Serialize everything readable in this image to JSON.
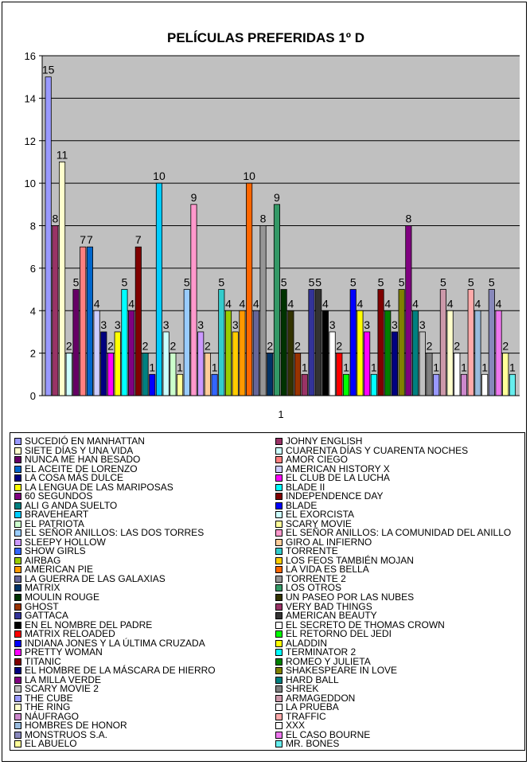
{
  "chart_data": {
    "type": "bar",
    "title": "PELÍCULAS PREFERIDAS 1º D",
    "categories": [
      "1"
    ],
    "ylim": [
      0,
      16
    ],
    "yticks": [
      0,
      2,
      4,
      6,
      8,
      10,
      12,
      14,
      16
    ],
    "grid": true,
    "legend_position": "bottom",
    "series": [
      {
        "name": "SUCEDIÓ EN MANHATTAN",
        "values": [
          15
        ],
        "color": "#9999ff"
      },
      {
        "name": "JOHNY ENGLISH",
        "values": [
          8
        ],
        "color": "#993366"
      },
      {
        "name": "SIETE DÍAS Y UNA VIDA",
        "values": [
          11
        ],
        "color": "#ffffcc"
      },
      {
        "name": "CUARENTA DÍAS Y CUARENTA NOCHES",
        "values": [
          2
        ],
        "color": "#ccffff"
      },
      {
        "name": "NUNCA ME HAN BESADO",
        "values": [
          5
        ],
        "color": "#660066"
      },
      {
        "name": "AMOR CIEGO",
        "values": [
          7
        ],
        "color": "#ff8080"
      },
      {
        "name": "EL ACEITE DE LORENZO",
        "values": [
          7
        ],
        "color": "#0066cc"
      },
      {
        "name": "AMERICAN HISTORY X",
        "values": [
          4
        ],
        "color": "#ccccff"
      },
      {
        "name": "LA COSA MÁS DULCE",
        "values": [
          3
        ],
        "color": "#000080"
      },
      {
        "name": "EL CLUB DE LA LUCHA",
        "values": [
          2
        ],
        "color": "#ff00ff"
      },
      {
        "name": "LA LENGUA DE LAS MARIPOSAS",
        "values": [
          3
        ],
        "color": "#ffff00"
      },
      {
        "name": "BLADE II",
        "values": [
          5
        ],
        "color": "#00ffff"
      },
      {
        "name": "60 SEGUNDOS",
        "values": [
          4
        ],
        "color": "#800080"
      },
      {
        "name": "INDEPENDENCE DAY",
        "values": [
          7
        ],
        "color": "#800000"
      },
      {
        "name": "ALI G ANDA SUELTO",
        "values": [
          2
        ],
        "color": "#008080"
      },
      {
        "name": "BLADE",
        "values": [
          1
        ],
        "color": "#0000ff"
      },
      {
        "name": "BRAVEHEART",
        "values": [
          10
        ],
        "color": "#00ccff"
      },
      {
        "name": "EL EXORCISTA",
        "values": [
          3
        ],
        "color": "#ccffff"
      },
      {
        "name": "EL PATRIOTA",
        "values": [
          2
        ],
        "color": "#ccffcc"
      },
      {
        "name": "SCARY MOVIE",
        "values": [
          1
        ],
        "color": "#ffff99"
      },
      {
        "name": "EL SEÑOR ANILLOS: LAS DOS TORRES",
        "values": [
          5
        ],
        "color": "#99ccff"
      },
      {
        "name": "EL SEÑOR ANILLOS: LA COMUNIDAD DEL ANILLO",
        "values": [
          9
        ],
        "color": "#ff99cc"
      },
      {
        "name": "SLEEPY HOLLOW",
        "values": [
          3
        ],
        "color": "#cc99ff"
      },
      {
        "name": "GIRO AL INFIERNO",
        "values": [
          2
        ],
        "color": "#ffcc99"
      },
      {
        "name": "SHOW GIRLS",
        "values": [
          1
        ],
        "color": "#3366ff"
      },
      {
        "name": "TORRENTE",
        "values": [
          5
        ],
        "color": "#33cccc"
      },
      {
        "name": "AIRBAG",
        "values": [
          4
        ],
        "color": "#99cc00"
      },
      {
        "name": "LOS FEOS TAMBIÉN MOJAN",
        "values": [
          3
        ],
        "color": "#ffcc00"
      },
      {
        "name": "AMERICAN PIE",
        "values": [
          4
        ],
        "color": "#ff9900"
      },
      {
        "name": "LA VIDA ES BELLA",
        "values": [
          10
        ],
        "color": "#ff6600"
      },
      {
        "name": "LA GUERRA DE LAS GALAXIAS",
        "values": [
          4
        ],
        "color": "#666699"
      },
      {
        "name": "TORRENTE 2",
        "values": [
          8
        ],
        "color": "#969696"
      },
      {
        "name": "MATRIX",
        "values": [
          2
        ],
        "color": "#003366"
      },
      {
        "name": "LOS OTROS",
        "values": [
          9
        ],
        "color": "#339966"
      },
      {
        "name": "MOULIN ROUGE",
        "values": [
          5
        ],
        "color": "#003300"
      },
      {
        "name": "UN PASEO POR LAS NUBES",
        "values": [
          4
        ],
        "color": "#333300"
      },
      {
        "name": "GHOST",
        "values": [
          2
        ],
        "color": "#993300"
      },
      {
        "name": "VERY BAD THINGS",
        "values": [
          1
        ],
        "color": "#993366"
      },
      {
        "name": "GATTACA",
        "values": [
          5
        ],
        "color": "#333399"
      },
      {
        "name": "AMERICAN BEAUTY",
        "values": [
          5
        ],
        "color": "#333333"
      },
      {
        "name": "EN EL NOMBRE DEL PADRE",
        "values": [
          4
        ],
        "color": "#000000"
      },
      {
        "name": "EL SECRETO DE THOMAS CROWN",
        "values": [
          3
        ],
        "color": "#ffffff"
      },
      {
        "name": "MATRIX RELOADED",
        "values": [
          2
        ],
        "color": "#ff0000"
      },
      {
        "name": "EL RETORNO DEL JEDI",
        "values": [
          1
        ],
        "color": "#00ff00"
      },
      {
        "name": "INDIANA JONES Y LA ÚLTIMA CRUZADA",
        "values": [
          5
        ],
        "color": "#0000ff"
      },
      {
        "name": "ALADDIN",
        "values": [
          4
        ],
        "color": "#ffff00"
      },
      {
        "name": "PRETTY WOMAN",
        "values": [
          3
        ],
        "color": "#ff00ff"
      },
      {
        "name": "TERMINATOR 2",
        "values": [
          1
        ],
        "color": "#00ffff"
      },
      {
        "name": "TITANIC",
        "values": [
          5
        ],
        "color": "#800000"
      },
      {
        "name": "ROMEO Y JULIETA",
        "values": [
          4
        ],
        "color": "#008000"
      },
      {
        "name": "EL HOMBRE DE LA MÁSCARA DE HIERRO",
        "values": [
          3
        ],
        "color": "#000080"
      },
      {
        "name": "SHAKESPEARE IN LOVE",
        "values": [
          5
        ],
        "color": "#808000"
      },
      {
        "name": "LA MILLA VERDE",
        "values": [
          8
        ],
        "color": "#800080"
      },
      {
        "name": "HARD BALL",
        "values": [
          4
        ],
        "color": "#008080"
      },
      {
        "name": "SCARY MOVIE 2",
        "values": [
          3
        ],
        "color": "#c0c0c0"
      },
      {
        "name": "SHREK",
        "values": [
          2
        ],
        "color": "#808080"
      },
      {
        "name": "THE CUBE",
        "values": [
          1
        ],
        "color": "#9999ff"
      },
      {
        "name": "ARMAGEDDON",
        "values": [
          5
        ],
        "color": "#cc99aa"
      },
      {
        "name": "THE RING",
        "values": [
          4
        ],
        "color": "#ffffcc"
      },
      {
        "name": "LA PRUEBA",
        "values": [
          2
        ],
        "color": "#ffffff"
      },
      {
        "name": "NÁUFRAGO",
        "values": [
          1
        ],
        "color": "#cc88cc"
      },
      {
        "name": "TRAFFIC",
        "values": [
          5
        ],
        "color": "#ffaaaa"
      },
      {
        "name": "HOMBRES DE HONOR",
        "values": [
          4
        ],
        "color": "#99bbdd"
      },
      {
        "name": "XXX",
        "values": [
          1
        ],
        "color": "#ffffff"
      },
      {
        "name": "MONSTRUOS S.A.",
        "values": [
          5
        ],
        "color": "#8888bb"
      },
      {
        "name": "EL CASO BOURNE",
        "values": [
          4
        ],
        "color": "#ee77ee"
      },
      {
        "name": "EL ABUELO",
        "values": [
          2
        ],
        "color": "#ffff99"
      },
      {
        "name": "MR. BONES",
        "values": [
          1
        ],
        "color": "#66eeee"
      }
    ]
  }
}
